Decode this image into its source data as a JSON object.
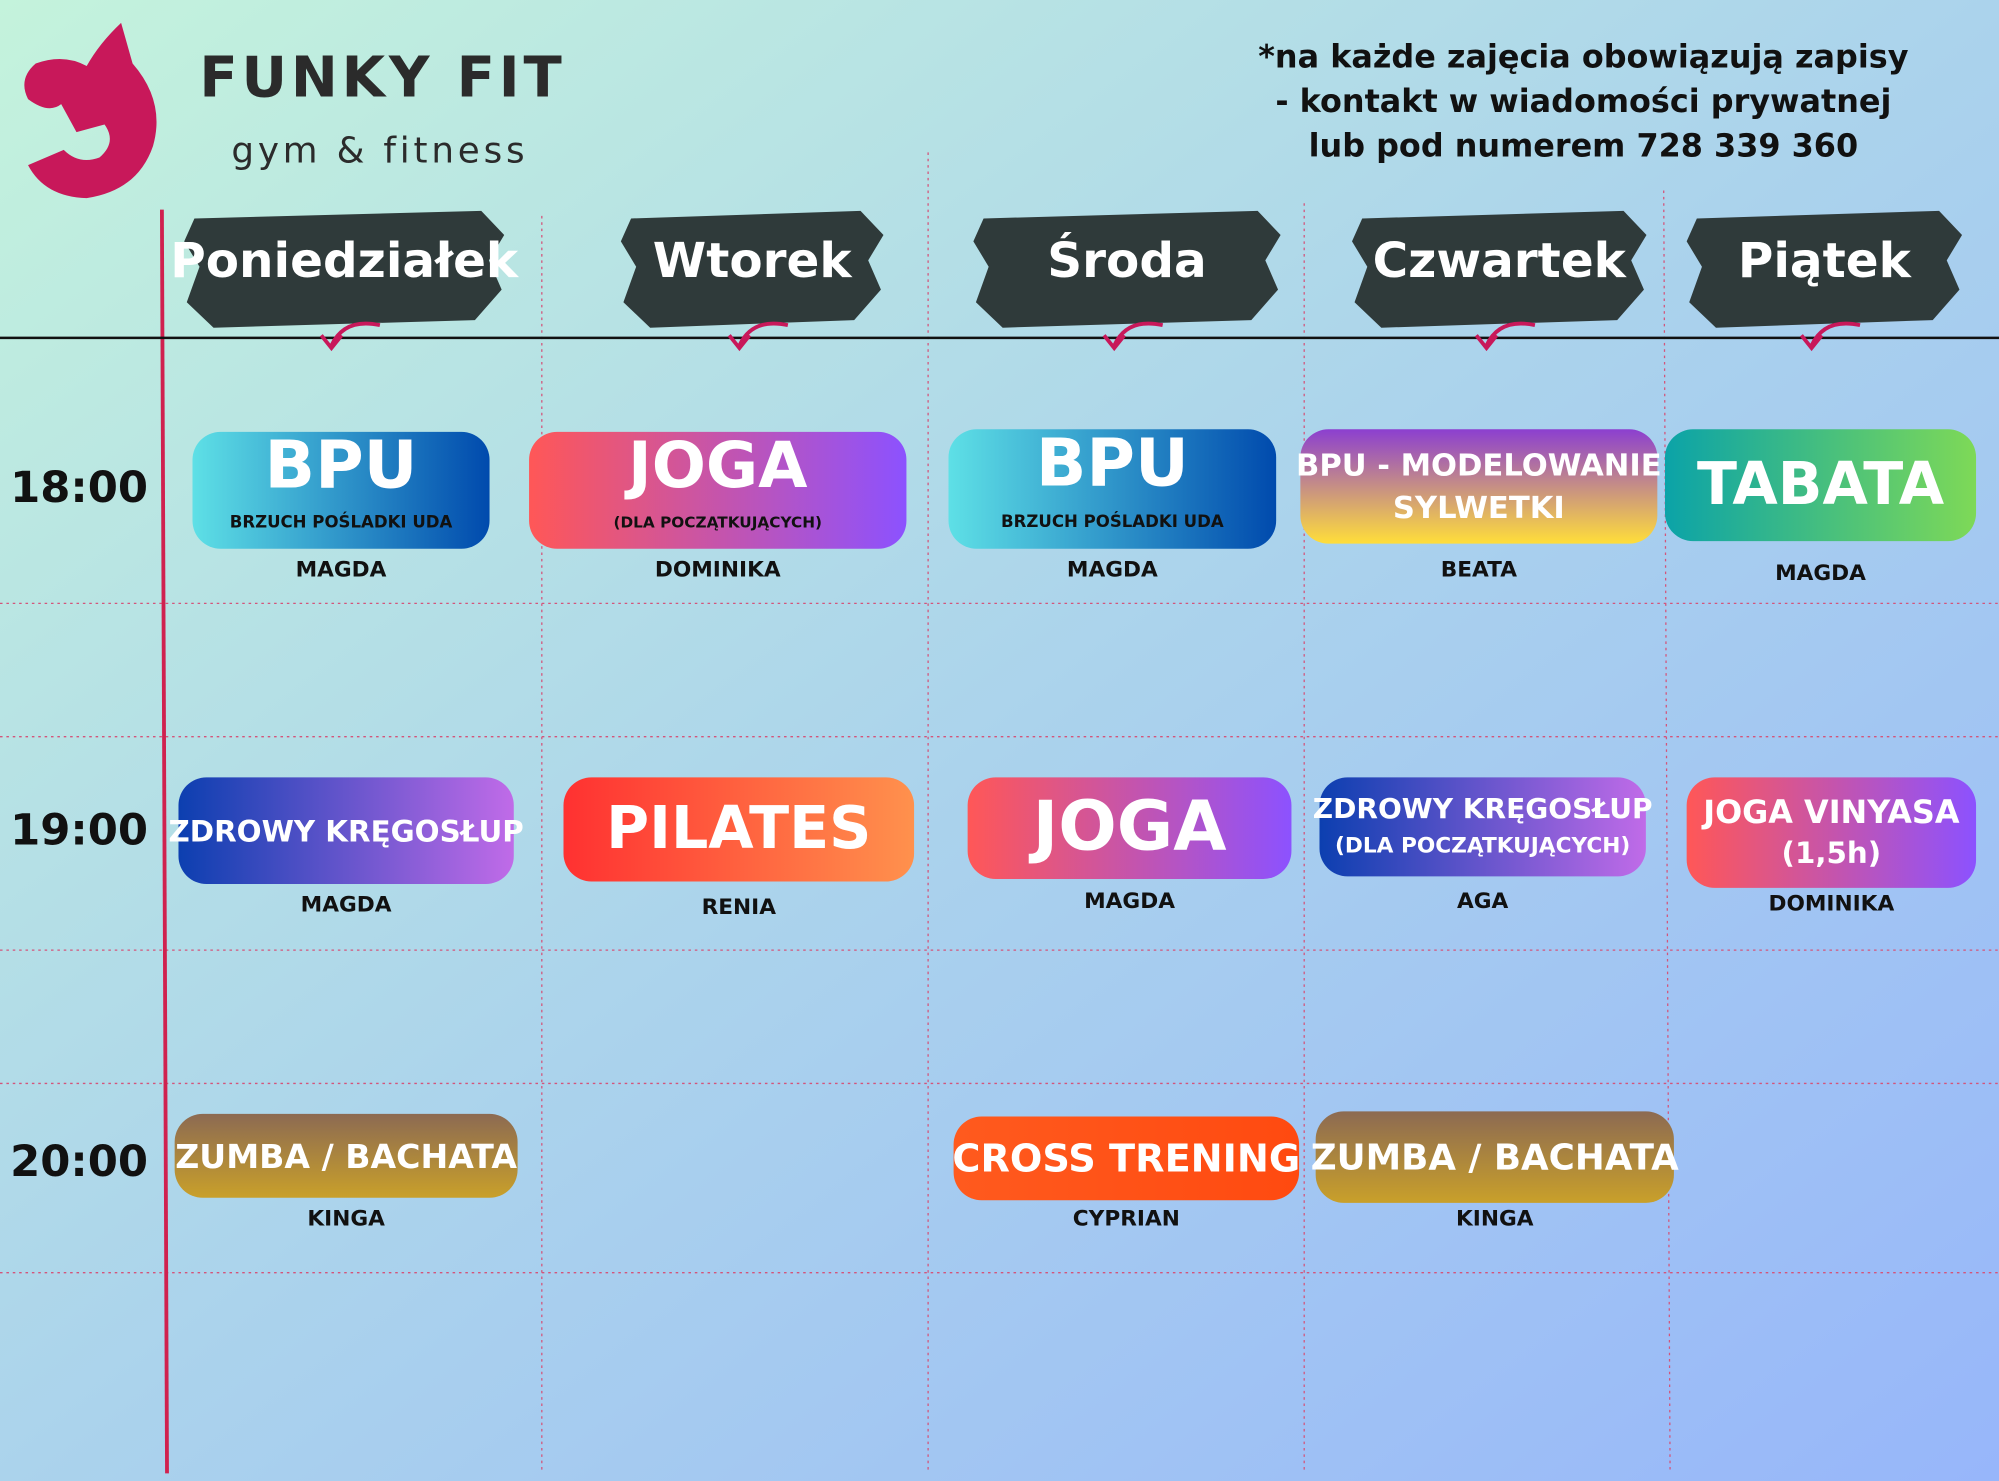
{
  "header": {
    "brand": "FUNKY FIT",
    "tagline": "gym & fitness",
    "note": [
      "*na każde zajęcia obowiązują zapisy",
      "- kontakt w wiadomości prywatnej",
      "lub pod numerem 728 339 360"
    ]
  },
  "days": [
    "Poniedziałek",
    "Wtorek",
    "Środa",
    "Czwartek",
    "Piątek"
  ],
  "schedule": [
    {
      "time": "18:00",
      "classes": [
        {
          "lines": [
            "BPU",
            "BRZUCH POŚLADKI UDA"
          ],
          "instructor": "MAGDA"
        },
        {
          "lines": [
            "JOGA",
            "(DLA POCZĄTKUJĄCYCH)"
          ],
          "instructor": "DOMINIKA"
        },
        {
          "lines": [
            "BPU",
            "BRZUCH POŚLADKI UDA"
          ],
          "instructor": "MAGDA"
        },
        {
          "lines": [
            "BPU - MODELOWANIE",
            "SYLWETKI"
          ],
          "instructor": "BEATA"
        },
        {
          "lines": [
            "TABATA"
          ],
          "instructor": "MAGDA"
        }
      ]
    },
    {
      "time": "19:00",
      "classes": [
        {
          "lines": [
            "ZDROWY KRĘGOSŁUP"
          ],
          "instructor": "MAGDA"
        },
        {
          "lines": [
            "PILATES"
          ],
          "instructor": "RENIA"
        },
        {
          "lines": [
            "JOGA"
          ],
          "instructor": "MAGDA"
        },
        {
          "lines": [
            "ZDROWY KRĘGOSŁUP",
            "(DLA POCZĄTKUJĄCYCH)"
          ],
          "instructor": "AGA"
        },
        {
          "lines": [
            "JOGA VINYASA",
            "(1,5h)"
          ],
          "instructor": "DOMINIKA"
        }
      ]
    },
    {
      "time": "20:00",
      "classes": [
        {
          "lines": [
            "ZUMBA / BACHATA"
          ],
          "instructor": "KINGA"
        },
        {
          "lines": [
            "CROSS TRENING"
          ],
          "instructor": "CYPRIAN"
        },
        {
          "lines": [
            "ZUMBA / BACHATA"
          ],
          "instructor": "KINGA"
        }
      ]
    }
  ]
}
